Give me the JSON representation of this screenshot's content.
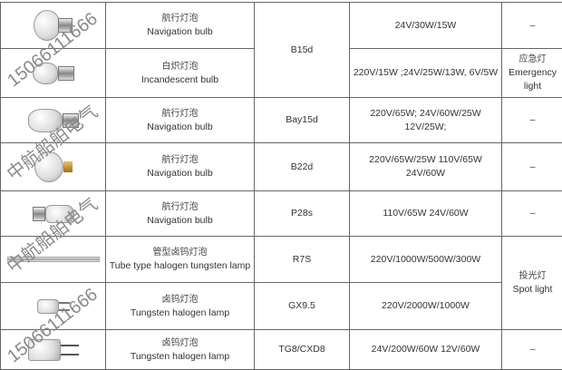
{
  "rows": [
    {
      "name_zh": "航行灯泡",
      "name_en": "Navigation bulb",
      "base": "B15d",
      "spec": "24V/30W/15W",
      "note": "–",
      "icon": "navigation-bulb-icon"
    },
    {
      "name_zh": "白炽灯泡",
      "name_en": "Incandescent bulb",
      "spec": "220V/15W ;24V/25W/13W, 6V/5W",
      "note_zh": "应急灯",
      "note_en": "Emergency light",
      "icon": "incandescent-bulb-icon"
    },
    {
      "name_zh": "航行灯泡",
      "name_en": "Navigation bulb",
      "base": "Bay15d",
      "spec1": "220V/65W;  24V/60W/25W",
      "spec2": "12V/25W;",
      "note": "–",
      "icon": "navigation-bulb-icon"
    },
    {
      "name_zh": "航行灯泡",
      "name_en": "Navigation bulb",
      "base": "B22d",
      "spec1": "220V/65W/25W  110V/65W",
      "spec2": "24V/60W",
      "note": "–",
      "icon": "navigation-bulb-icon"
    },
    {
      "name_zh": "航行灯泡",
      "name_en": "Navigation bulb",
      "base": "P28s",
      "spec": "110V/65W   24V/60W",
      "note": "–",
      "icon": "navigation-bulb-icon"
    },
    {
      "name_zh": "管型卤钨灯泡",
      "name_en": "Tube type halogen tungsten lamp",
      "base": "R7S",
      "spec": "220V/1000W/500W/300W",
      "note_zh": "投光灯",
      "note_en": "Spot light",
      "icon": "tube-halogen-lamp-icon"
    },
    {
      "name_zh": "卤钨灯泡",
      "name_en": "Tungsten halogen lamp",
      "base": "GX9.5",
      "spec": "220V/2000W/1000W",
      "icon": "halogen-lamp-icon"
    },
    {
      "name_zh": "卤钨灯泡",
      "name_en": "Tungsten halogen lamp",
      "base": "TG8/CXD8",
      "spec": "24V/200W/60W   12V/60W",
      "note": "–",
      "icon": "halogen-lamp-icon"
    }
  ],
  "watermarks": {
    "phone": "15066111666",
    "company": "中航船舶电气"
  }
}
